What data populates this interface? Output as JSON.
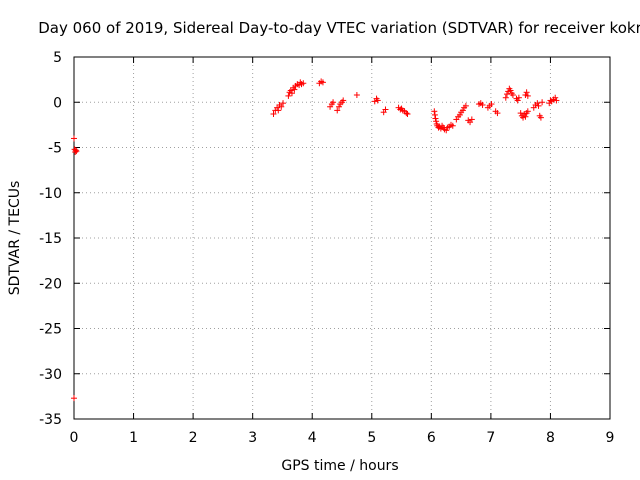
{
  "chart_data": {
    "type": "scatter",
    "title": "Day 060 of 2019, Sidereal Day-to-day VTEC variation (SDTVAR) for receiver kokr",
    "xlabel": "GPS time / hours",
    "ylabel": "SDTVAR / TECUs",
    "xlim": [
      0,
      9
    ],
    "ylim": [
      -35,
      5
    ],
    "xticks": [
      "0",
      "1",
      "2",
      "3",
      "4",
      "5",
      "6",
      "7",
      "8",
      "9"
    ],
    "yticks": [
      "5",
      "0",
      "-5",
      "-10",
      "-15",
      "-20",
      "-25",
      "-30",
      "-35"
    ],
    "grid": true,
    "marker": "+",
    "marker_color": "#ff0000",
    "series": [
      {
        "name": "SDTVAR",
        "points": [
          [
            0.0,
            -4.0
          ],
          [
            0.01,
            -5.2
          ],
          [
            0.02,
            -5.5
          ],
          [
            0.03,
            -5.3
          ],
          [
            0.04,
            -5.4
          ],
          [
            0.0,
            -32.7
          ],
          [
            3.35,
            -1.3
          ],
          [
            3.38,
            -0.9
          ],
          [
            3.41,
            -0.6
          ],
          [
            3.43,
            -0.9
          ],
          [
            3.45,
            -0.3
          ],
          [
            3.48,
            -0.5
          ],
          [
            3.51,
            -0.1
          ],
          [
            3.6,
            0.7
          ],
          [
            3.62,
            1.1
          ],
          [
            3.64,
            1.3
          ],
          [
            3.66,
            1.0
          ],
          [
            3.68,
            1.6
          ],
          [
            3.7,
            1.4
          ],
          [
            3.72,
            1.8
          ],
          [
            3.75,
            2.0
          ],
          [
            3.78,
            1.9
          ],
          [
            3.8,
            2.2
          ],
          [
            3.82,
            2.0
          ],
          [
            3.85,
            2.1
          ],
          [
            4.12,
            2.1
          ],
          [
            4.15,
            2.3
          ],
          [
            4.18,
            2.2
          ],
          [
            4.3,
            -0.5
          ],
          [
            4.33,
            -0.2
          ],
          [
            4.35,
            0.0
          ],
          [
            4.42,
            -0.9
          ],
          [
            4.45,
            -0.5
          ],
          [
            4.47,
            -0.2
          ],
          [
            4.5,
            0.0
          ],
          [
            4.52,
            0.2
          ],
          [
            4.75,
            0.8
          ],
          [
            5.05,
            0.1
          ],
          [
            5.08,
            0.4
          ],
          [
            5.1,
            0.2
          ],
          [
            5.2,
            -1.1
          ],
          [
            5.23,
            -0.8
          ],
          [
            5.45,
            -0.6
          ],
          [
            5.48,
            -0.8
          ],
          [
            5.5,
            -0.7
          ],
          [
            5.52,
            -0.9
          ],
          [
            5.55,
            -1.0
          ],
          [
            5.58,
            -1.2
          ],
          [
            5.6,
            -1.3
          ],
          [
            6.05,
            -1.0
          ],
          [
            6.06,
            -1.4
          ],
          [
            6.07,
            -1.8
          ],
          [
            6.08,
            -2.1
          ],
          [
            6.09,
            -2.4
          ],
          [
            6.1,
            -2.6
          ],
          [
            6.12,
            -2.8
          ],
          [
            6.14,
            -2.7
          ],
          [
            6.16,
            -2.9
          ],
          [
            6.18,
            -2.6
          ],
          [
            6.2,
            -2.8
          ],
          [
            6.22,
            -3.0
          ],
          [
            6.25,
            -3.1
          ],
          [
            6.27,
            -2.8
          ],
          [
            6.3,
            -2.7
          ],
          [
            6.33,
            -2.5
          ],
          [
            6.36,
            -2.6
          ],
          [
            6.42,
            -1.9
          ],
          [
            6.45,
            -1.6
          ],
          [
            6.48,
            -1.4
          ],
          [
            6.5,
            -1.1
          ],
          [
            6.53,
            -0.9
          ],
          [
            6.55,
            -0.6
          ],
          [
            6.58,
            -0.4
          ],
          [
            6.62,
            -2.0
          ],
          [
            6.65,
            -2.2
          ],
          [
            6.68,
            -1.9
          ],
          [
            6.8,
            -0.2
          ],
          [
            6.83,
            -0.1
          ],
          [
            6.86,
            -0.3
          ],
          [
            6.95,
            -0.6
          ],
          [
            6.98,
            -0.4
          ],
          [
            7.01,
            -0.2
          ],
          [
            7.08,
            -1.0
          ],
          [
            7.11,
            -1.2
          ],
          [
            7.25,
            0.5
          ],
          [
            7.27,
            0.9
          ],
          [
            7.29,
            1.2
          ],
          [
            7.31,
            1.5
          ],
          [
            7.33,
            1.3
          ],
          [
            7.35,
            1.0
          ],
          [
            7.37,
            0.8
          ],
          [
            7.43,
            0.4
          ],
          [
            7.45,
            0.2
          ],
          [
            7.47,
            0.5
          ],
          [
            7.5,
            -1.2
          ],
          [
            7.52,
            -1.5
          ],
          [
            7.54,
            -1.7
          ],
          [
            7.56,
            -1.3
          ],
          [
            7.58,
            -1.6
          ],
          [
            7.6,
            -1.2
          ],
          [
            7.62,
            -1.0
          ],
          [
            7.58,
            0.8
          ],
          [
            7.6,
            1.1
          ],
          [
            7.62,
            0.7
          ],
          [
            7.72,
            -0.6
          ],
          [
            7.75,
            -0.3
          ],
          [
            7.78,
            -0.1
          ],
          [
            7.8,
            -0.4
          ],
          [
            7.82,
            -1.5
          ],
          [
            7.84,
            -1.7
          ],
          [
            7.86,
            0.0
          ],
          [
            7.98,
            -0.1
          ],
          [
            8.0,
            0.2
          ],
          [
            8.02,
            0.1
          ],
          [
            8.05,
            0.3
          ],
          [
            8.08,
            0.5
          ],
          [
            8.1,
            0.2
          ]
        ]
      }
    ]
  }
}
